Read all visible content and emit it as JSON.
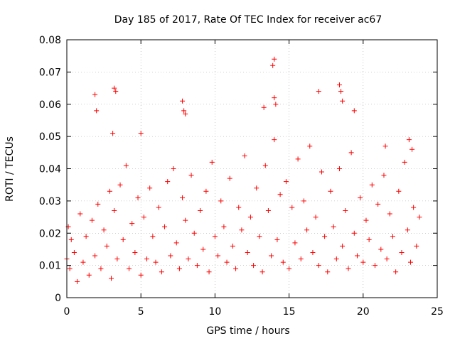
{
  "chart_data": {
    "type": "scatter",
    "title": "Day 185 of 2017, Rate Of TEC Index for receiver ac67",
    "xlabel": "GPS time / hours",
    "ylabel": "ROTI / TECUs",
    "xlim": [
      0,
      25
    ],
    "ylim": [
      0,
      0.08
    ],
    "xticks": [
      "0",
      "5",
      "10",
      "15",
      "20",
      "25"
    ],
    "xtick_values": [
      0,
      5,
      10,
      15,
      20,
      25
    ],
    "yticks": [
      "0",
      "0.01",
      "0.02",
      "0.03",
      "0.04",
      "0.05",
      "0.06",
      "0.07",
      "0.08"
    ],
    "ytick_values": [
      0,
      0.01,
      0.02,
      0.03,
      0.04,
      0.05,
      0.06,
      0.07,
      0.08
    ],
    "grid": true,
    "marker": "plus",
    "color": "#ff0000",
    "series": [
      {
        "x": [
          0.0,
          0.1,
          0.2,
          0.3,
          0.5,
          0.7,
          0.9,
          1.1,
          1.3,
          1.5,
          1.7,
          1.9,
          2.1,
          2.3,
          2.5,
          2.7,
          2.9,
          3.0,
          3.2,
          3.4,
          3.6,
          3.8,
          4.0,
          4.2,
          4.4,
          4.6,
          4.8,
          5.0,
          5.2,
          5.4,
          5.6,
          5.8,
          6.0,
          6.2,
          6.4,
          6.6,
          6.8,
          7.0,
          7.2,
          7.4,
          7.6,
          7.8,
          8.0,
          8.2,
          8.4,
          8.6,
          8.8,
          9.0,
          9.2,
          9.4,
          9.6,
          9.8,
          10.0,
          10.2,
          10.4,
          10.6,
          10.8,
          11.0,
          11.2,
          11.4,
          11.6,
          11.8,
          12.0,
          12.2,
          12.4,
          12.6,
          12.8,
          13.0,
          13.2,
          13.4,
          13.6,
          13.8,
          14.0,
          14.2,
          14.4,
          14.6,
          14.8,
          15.0,
          15.2,
          15.4,
          15.6,
          15.8,
          16.0,
          16.2,
          16.4,
          16.6,
          16.8,
          17.0,
          17.2,
          17.4,
          17.6,
          17.8,
          18.0,
          18.2,
          18.4,
          18.6,
          18.8,
          19.0,
          19.2,
          19.4,
          19.6,
          19.8,
          20.0,
          20.2,
          20.4,
          20.6,
          20.8,
          21.0,
          21.2,
          21.4,
          21.6,
          21.8,
          22.0,
          22.2,
          22.4,
          22.6,
          22.8,
          23.0,
          23.2,
          23.4,
          23.6,
          23.8,
          1.9,
          2.0,
          3.1,
          3.2,
          3.3,
          5.0,
          7.8,
          7.9,
          8.0,
          13.9,
          14.0,
          14.0,
          14.1,
          17.0,
          18.4,
          18.5,
          18.6,
          19.4,
          21.5,
          23.1,
          23.3,
          13.3
        ],
        "y": [
          0.012,
          0.022,
          0.009,
          0.018,
          0.014,
          0.005,
          0.026,
          0.011,
          0.019,
          0.007,
          0.024,
          0.013,
          0.029,
          0.009,
          0.021,
          0.016,
          0.033,
          0.006,
          0.027,
          0.012,
          0.035,
          0.018,
          0.041,
          0.009,
          0.023,
          0.014,
          0.031,
          0.007,
          0.025,
          0.012,
          0.034,
          0.019,
          0.011,
          0.028,
          0.008,
          0.022,
          0.036,
          0.013,
          0.04,
          0.017,
          0.009,
          0.031,
          0.024,
          0.012,
          0.038,
          0.02,
          0.01,
          0.027,
          0.015,
          0.033,
          0.008,
          0.042,
          0.019,
          0.013,
          0.03,
          0.022,
          0.011,
          0.037,
          0.016,
          0.009,
          0.028,
          0.021,
          0.044,
          0.014,
          0.025,
          0.01,
          0.034,
          0.019,
          0.008,
          0.041,
          0.027,
          0.013,
          0.049,
          0.018,
          0.032,
          0.011,
          0.036,
          0.009,
          0.028,
          0.017,
          0.043,
          0.012,
          0.03,
          0.021,
          0.047,
          0.014,
          0.025,
          0.01,
          0.039,
          0.019,
          0.008,
          0.033,
          0.022,
          0.012,
          0.04,
          0.016,
          0.027,
          0.009,
          0.045,
          0.02,
          0.013,
          0.031,
          0.011,
          0.024,
          0.018,
          0.035,
          0.01,
          0.029,
          0.015,
          0.038,
          0.012,
          0.026,
          0.019,
          0.008,
          0.033,
          0.014,
          0.042,
          0.021,
          0.011,
          0.028,
          0.016,
          0.025,
          0.063,
          0.058,
          0.051,
          0.065,
          0.064,
          0.051,
          0.061,
          0.058,
          0.057,
          0.072,
          0.074,
          0.062,
          0.06,
          0.064,
          0.066,
          0.064,
          0.061,
          0.058,
          0.047,
          0.049,
          0.046,
          0.059
        ]
      }
    ]
  }
}
